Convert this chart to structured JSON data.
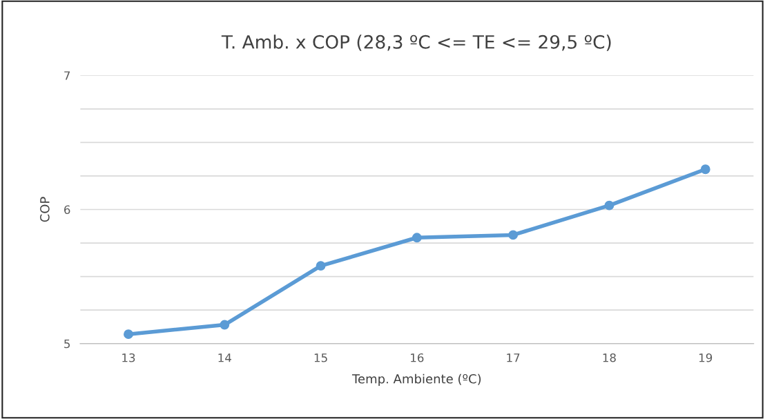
{
  "chart_data": {
    "type": "line",
    "title": "T. Amb. x COP (28,3 ºC <= TE <= 29,5 ºC)",
    "xlabel": "Temp. Ambiente (ºC)",
    "ylabel": "COP",
    "categories": [
      "13",
      "14",
      "15",
      "16",
      "17",
      "18",
      "19"
    ],
    "series": [
      {
        "color": "#5b9bd5",
        "values": [
          5.07,
          5.14,
          5.58,
          5.79,
          5.81,
          6.03,
          6.3
        ]
      }
    ],
    "ylim": [
      5,
      7
    ],
    "yticks": [
      5,
      {
        "value": 5.25,
        "label": null
      },
      {
        "value": 5.5,
        "label": null
      },
      {
        "value": 5.75,
        "label": null
      },
      6,
      {
        "value": 6.25,
        "label": null
      },
      {
        "value": 6.5,
        "label": null
      },
      {
        "value": 6.75,
        "label": null
      },
      7
    ],
    "grid": "y",
    "marker": "circle",
    "line_style": "solid",
    "legend": false
  }
}
